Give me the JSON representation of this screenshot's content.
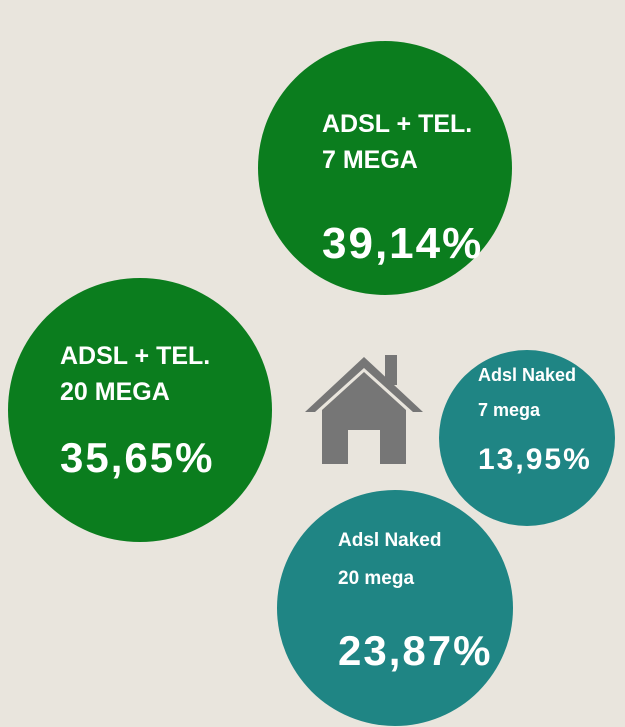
{
  "chart_data": {
    "type": "bubble",
    "categories": [
      [
        "ADSL + TEL.",
        "7 MEGA"
      ],
      [
        "ADSL + TEL.",
        "20 MEGA"
      ],
      [
        "Adsl Naked",
        "7 mega"
      ],
      [
        "Adsl Naked",
        "20 mega"
      ]
    ],
    "values": [
      39.14,
      35.65,
      13.95,
      23.87
    ],
    "value_labels": [
      "39,14%",
      "35,65%",
      "13,95%",
      "23,87%"
    ],
    "colors": [
      "#0b7d1e",
      "#0b7d1e",
      "#1f8584",
      "#1f8584"
    ]
  }
}
